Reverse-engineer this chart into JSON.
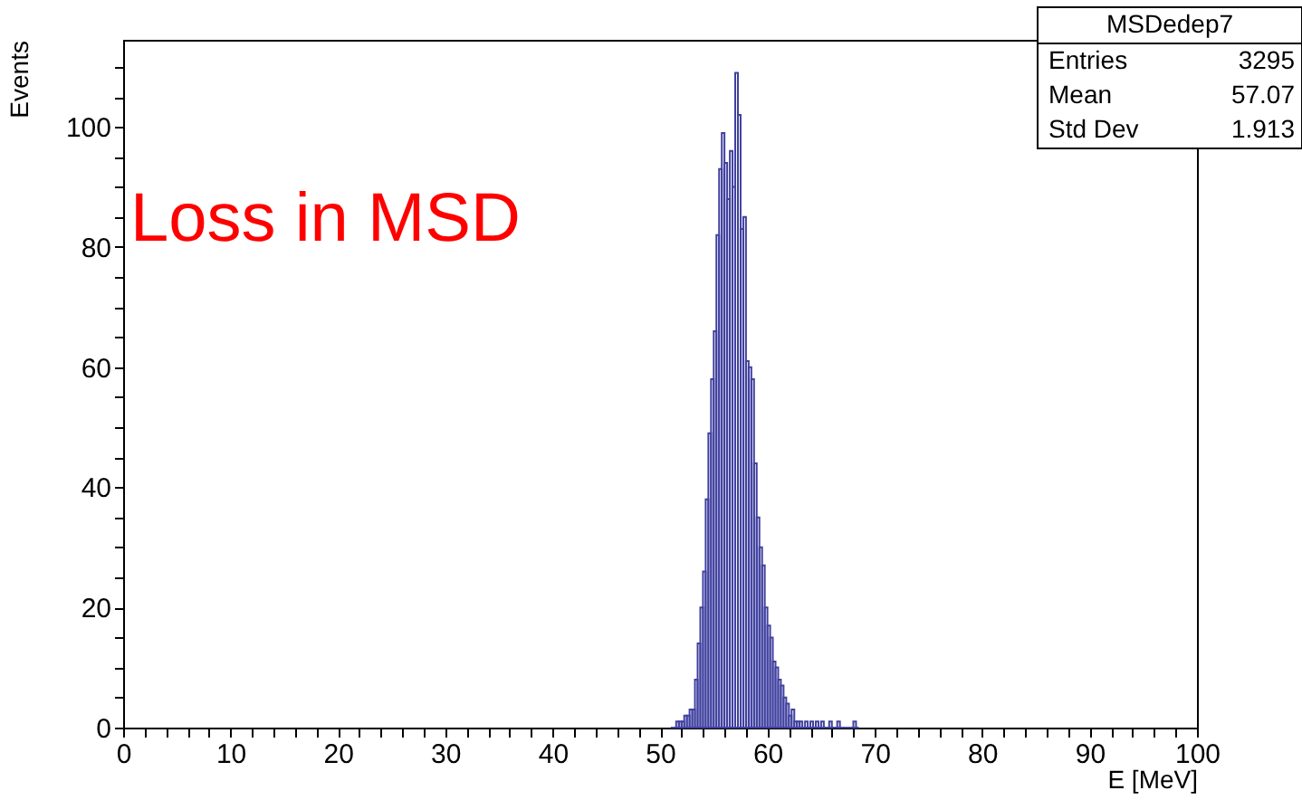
{
  "chart_data": {
    "type": "histogram",
    "xlabel": "E [MeV]",
    "ylabel": "Events",
    "color": "#4040a0",
    "bins": [
      51.0,
      51.25,
      51.5,
      51.75,
      52.0,
      52.25,
      52.5,
      52.75,
      53.0,
      53.25,
      53.5,
      53.75,
      54.0,
      54.25,
      54.5,
      54.75,
      55.0,
      55.25,
      55.5,
      55.75,
      56.0,
      56.25,
      56.5,
      56.75,
      57.0,
      57.25,
      57.5,
      57.75,
      58.0,
      58.25,
      58.5,
      58.75,
      59.0,
      59.25,
      59.5,
      59.75,
      60.0,
      60.25,
      60.5,
      60.75,
      61.0,
      61.25,
      61.5,
      61.75,
      62.0,
      62.25,
      62.5,
      62.75,
      63.0,
      63.25,
      63.5,
      63.75,
      64.0,
      64.25,
      64.5,
      64.75,
      65.0,
      65.25,
      65.5,
      65.75,
      66.0,
      66.25,
      66.5,
      66.75,
      67.0,
      67.25,
      67.5,
      67.75,
      68.0,
      68.25,
      68.5
    ],
    "values": [
      0,
      0,
      1,
      1,
      1,
      2,
      2,
      3,
      3,
      8,
      14,
      20,
      26,
      38,
      49,
      58,
      66,
      82,
      93,
      99,
      94,
      88,
      96,
      90,
      109,
      102,
      83,
      85,
      61,
      60,
      58,
      44,
      35,
      30,
      27,
      20,
      17,
      15,
      11,
      10,
      8,
      7,
      5,
      4,
      2,
      3,
      1,
      1,
      1,
      0,
      1,
      0,
      1,
      0,
      1,
      0,
      1,
      0,
      0,
      1,
      0,
      0,
      1,
      0,
      0,
      0,
      0,
      0,
      1,
      0
    ],
    "xlim": [
      0,
      100
    ],
    "ylim": [
      0,
      114.5
    ],
    "xticks": [
      0,
      {
        "value": 2,
        "label": null
      },
      {
        "value": 4,
        "label": null
      },
      {
        "value": 6,
        "label": null
      },
      {
        "value": 8,
        "label": null
      },
      10,
      {
        "value": 12,
        "label": null
      },
      {
        "value": 14,
        "label": null
      },
      {
        "value": 16,
        "label": null
      },
      {
        "value": 18,
        "label": null
      },
      20,
      {
        "value": 22,
        "label": null
      },
      {
        "value": 24,
        "label": null
      },
      {
        "value": 26,
        "label": null
      },
      {
        "value": 28,
        "label": null
      },
      30,
      {
        "value": 32,
        "label": null
      },
      {
        "value": 34,
        "label": null
      },
      {
        "value": 36,
        "label": null
      },
      {
        "value": 38,
        "label": null
      },
      40,
      {
        "value": 42,
        "label": null
      },
      {
        "value": 44,
        "label": null
      },
      {
        "value": 46,
        "label": null
      },
      {
        "value": 48,
        "label": null
      },
      50,
      {
        "value": 52,
        "label": null
      },
      {
        "value": 54,
        "label": null
      },
      {
        "value": 56,
        "label": null
      },
      {
        "value": 58,
        "label": null
      },
      60,
      {
        "value": 62,
        "label": null
      },
      {
        "value": 64,
        "label": null
      },
      {
        "value": 66,
        "label": null
      },
      {
        "value": 68,
        "label": null
      },
      70,
      {
        "value": 72,
        "label": null
      },
      {
        "value": 74,
        "label": null
      },
      {
        "value": 76,
        "label": null
      },
      {
        "value": 78,
        "label": null
      },
      80,
      {
        "value": 82,
        "label": null
      },
      {
        "value": 84,
        "label": null
      },
      {
        "value": 86,
        "label": null
      },
      {
        "value": 88,
        "label": null
      },
      90,
      {
        "value": 92,
        "label": null
      },
      {
        "value": 94,
        "label": null
      },
      {
        "value": 96,
        "label": null
      },
      {
        "value": 98,
        "label": null
      },
      100
    ],
    "yticks": [
      0,
      {
        "value": 5,
        "label": null
      },
      {
        "value": 10,
        "label": null
      },
      {
        "value": 15,
        "label": null
      },
      20,
      {
        "value": 25,
        "label": null
      },
      {
        "value": 30,
        "label": null
      },
      {
        "value": 35,
        "label": null
      },
      40,
      {
        "value": 45,
        "label": null
      },
      {
        "value": 50,
        "label": null
      },
      {
        "value": 55,
        "label": null
      },
      60,
      {
        "value": 65,
        "label": null
      },
      {
        "value": 70,
        "label": null
      },
      {
        "value": 75,
        "label": null
      },
      80,
      {
        "value": 85,
        "label": null
      },
      {
        "value": 90,
        "label": null
      },
      {
        "value": 95,
        "label": null
      },
      100,
      {
        "value": 105,
        "label": null
      },
      {
        "value": 110,
        "label": null
      }
    ],
    "annotations": [
      "Loss in MSD",
      "MSDedep7",
      "Entries",
      "3295",
      "Mean",
      "57.07",
      "Std Dev",
      "1.913"
    ]
  }
}
